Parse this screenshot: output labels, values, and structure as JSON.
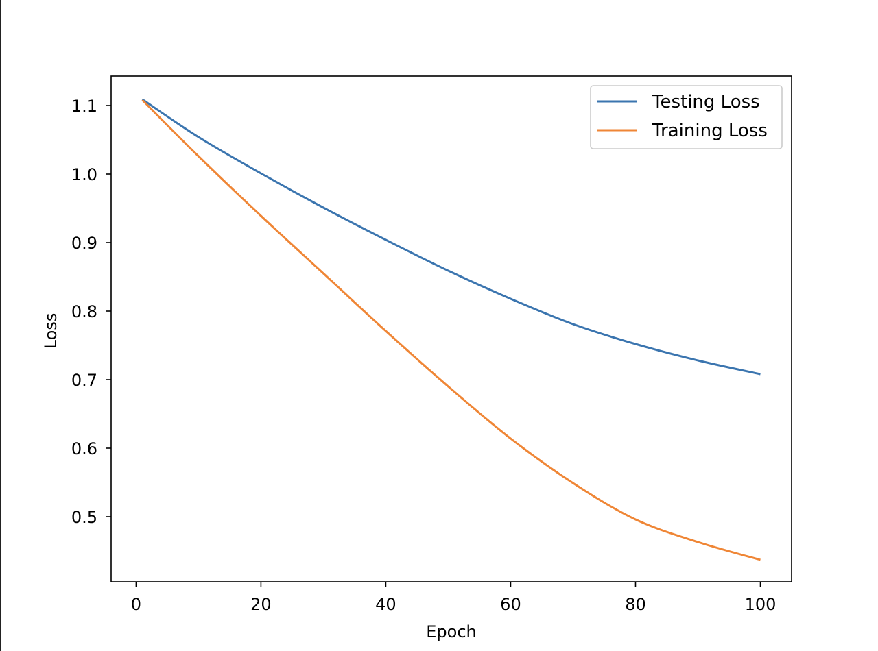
{
  "chart_data": {
    "type": "line",
    "title": "",
    "xlabel": "Epoch",
    "ylabel": "Loss",
    "xlim": [
      -4,
      105
    ],
    "ylim": [
      0.405,
      1.143
    ],
    "xticks": [
      0,
      20,
      40,
      60,
      80,
      100
    ],
    "yticks": [
      0.5,
      0.6,
      0.7,
      0.8,
      0.9,
      1.0,
      1.1
    ],
    "ytick_labels": [
      "0.5",
      "0.6",
      "0.7",
      "0.8",
      "0.9",
      "1.0",
      "1.1"
    ],
    "grid": false,
    "legend_position": "top-right",
    "x": [
      1,
      10,
      20,
      30,
      40,
      50,
      60,
      70,
      80,
      90,
      100
    ],
    "series": [
      {
        "name": "Testing Loss",
        "color": "#3b75af",
        "values": [
          1.109,
          1.054,
          1.001,
          0.951,
          0.904,
          0.859,
          0.818,
          0.781,
          0.752,
          0.728,
          0.708
        ]
      },
      {
        "name": "Training Loss",
        "color": "#ef8636",
        "values": [
          1.108,
          1.026,
          0.939,
          0.855,
          0.771,
          0.69,
          0.614,
          0.549,
          0.496,
          0.463,
          0.437
        ]
      }
    ]
  }
}
